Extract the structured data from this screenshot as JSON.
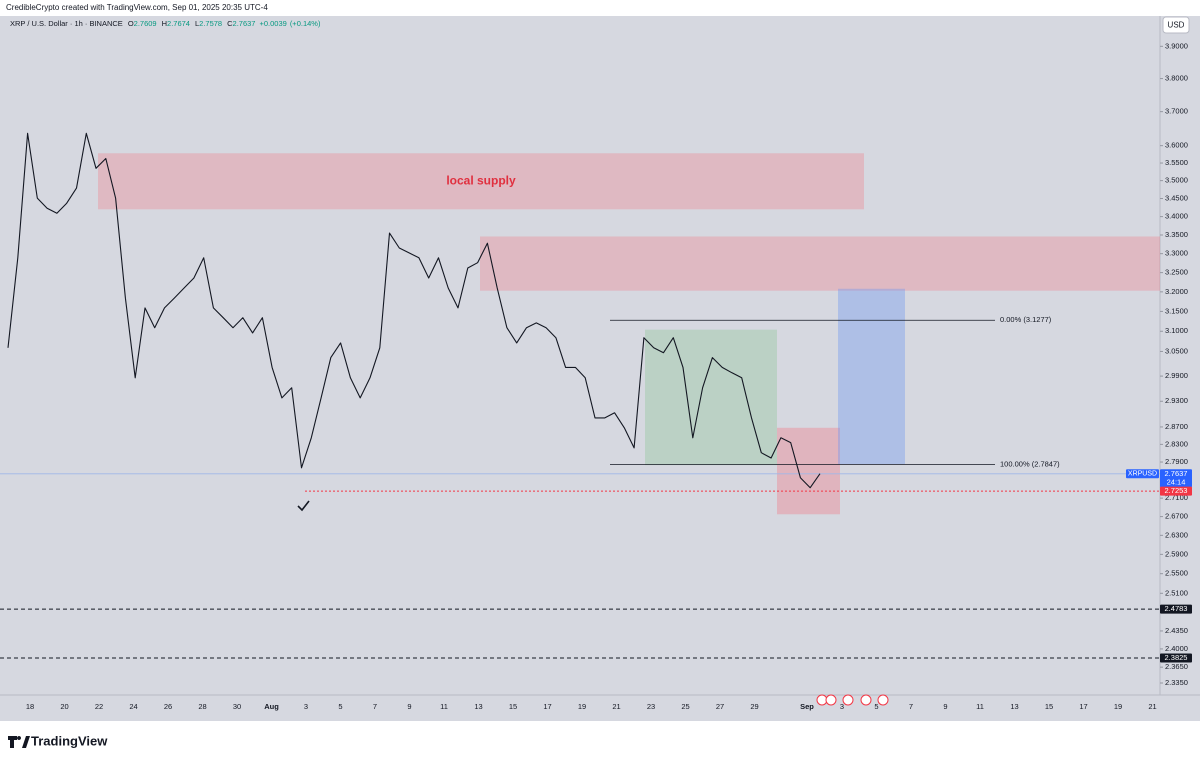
{
  "header": {
    "credit": "CredibleCrypto created with TradingView.com, Sep 01, 2025 20:35 UTC-4"
  },
  "chart_data": {
    "type": "line",
    "title": "XRP / U.S. Dollar · 1h · BINANCE",
    "ohlc": [
      {
        "label": "O",
        "value": 2.7609
      },
      {
        "label": "H",
        "value": 2.7674
      },
      {
        "label": "L",
        "value": 2.7578
      },
      {
        "label": "C",
        "value": 2.7637
      }
    ],
    "change": {
      "value": 0.0039,
      "label": "+0.0039"
    },
    "change_pct": {
      "value": 0.14,
      "label": "(+0.14%)"
    },
    "currency": "USD",
    "symbol": "XRPUSD",
    "countdown": "24:14",
    "log_scale": true,
    "ylim": [
      2.32,
      3.99
    ],
    "yticks": [
      {
        "value": 3.9,
        "label": "3.9000"
      },
      {
        "value": 3.8,
        "label": "3.8000"
      },
      {
        "value": 3.7,
        "label": "3.7000"
      },
      {
        "value": 3.6,
        "label": "3.6000"
      },
      {
        "value": 3.55,
        "label": "3.5500"
      },
      {
        "value": 3.5,
        "label": "3.5000"
      },
      {
        "value": 3.45,
        "label": "3.4500"
      },
      {
        "value": 3.4,
        "label": "3.4000"
      },
      {
        "value": 3.35,
        "label": "3.3500"
      },
      {
        "value": 3.3,
        "label": "3.3000"
      },
      {
        "value": 3.25,
        "label": "3.2500"
      },
      {
        "value": 3.2,
        "label": "3.2000"
      },
      {
        "value": 3.15,
        "label": "3.1500"
      },
      {
        "value": 3.1,
        "label": "3.1000"
      },
      {
        "value": 3.05,
        "label": "3.0500"
      },
      {
        "value": 2.99,
        "label": "2.9900"
      },
      {
        "value": 2.93,
        "label": "2.9300"
      },
      {
        "value": 2.87,
        "label": "2.8700"
      },
      {
        "value": 2.83,
        "label": "2.8300"
      },
      {
        "value": 2.79,
        "label": "2.7900"
      },
      {
        "value": 2.71,
        "label": "2.7100"
      },
      {
        "value": 2.67,
        "label": "2.6700"
      },
      {
        "value": 2.63,
        "label": "2.6300"
      },
      {
        "value": 2.59,
        "label": "2.5900"
      },
      {
        "value": 2.55,
        "label": "2.5500"
      },
      {
        "value": 2.51,
        "label": "2.5100"
      },
      {
        "value": 2.435,
        "label": "2.4350"
      },
      {
        "value": 2.4,
        "label": "2.4000"
      },
      {
        "value": 2.365,
        "label": "2.3650"
      },
      {
        "value": 2.335,
        "label": "2.3350"
      }
    ],
    "xticks": [
      "18",
      "20",
      "22",
      "24",
      "26",
      "28",
      "30",
      "Aug",
      "3",
      "5",
      "7",
      "9",
      "11",
      "13",
      "15",
      "17",
      "19",
      "21",
      "23",
      "25",
      "27",
      "29",
      "Sep",
      "3",
      "5",
      "7",
      "9",
      "11",
      "13",
      "15",
      "17",
      "19",
      "21"
    ],
    "series": [
      {
        "name": "XRPUSD",
        "color": "#131722",
        "values": [
          3.059,
          3.289,
          3.636,
          3.451,
          3.423,
          3.409,
          3.437,
          3.479,
          3.636,
          3.535,
          3.563,
          3.451,
          3.184,
          2.986,
          3.159,
          3.109,
          3.159,
          3.184,
          3.21,
          3.236,
          3.289,
          3.159,
          3.134,
          3.109,
          3.134,
          3.096,
          3.134,
          3.011,
          2.938,
          2.962,
          2.777,
          2.845,
          2.938,
          3.035,
          3.071,
          2.986,
          2.938,
          2.986,
          3.059,
          3.355,
          3.315,
          3.302,
          3.289,
          3.236,
          3.289,
          3.21,
          3.159,
          3.262,
          3.276,
          3.328,
          3.21,
          3.109,
          3.071,
          3.109,
          3.121,
          3.109,
          3.084,
          3.011,
          3.011,
          2.986,
          2.891,
          2.891,
          2.903,
          2.868,
          2.822,
          3.084,
          3.059,
          3.047,
          3.084,
          3.011,
          2.845,
          2.962,
          3.035,
          3.011,
          2.998,
          2.986,
          2.891,
          2.811,
          2.799,
          2.845,
          2.834,
          2.755,
          2.733,
          2.764
        ]
      }
    ],
    "price_labels": [
      {
        "value": 2.7637,
        "label": "2.7637",
        "color": "#2962ff",
        "line": "solid"
      },
      {
        "value": 2.7253,
        "label": "2.7253",
        "color": "#f23645",
        "line": "dotted"
      },
      {
        "value": 2.4783,
        "label": "2.4783",
        "color": "#131722",
        "line": "dashed"
      },
      {
        "value": 2.3825,
        "label": "2.3825",
        "color": "#131722",
        "line": "dashed"
      }
    ],
    "zones": [
      {
        "top": 3.578,
        "bottom": 3.42,
        "color": "rgba(242,120,134,0.33)",
        "label": "local supply"
      },
      {
        "top": 3.346,
        "bottom": 3.203,
        "color": "rgba(242,120,134,0.33)"
      },
      {
        "top": 3.104,
        "bottom": 2.783,
        "color": "rgba(120,190,130,0.28)"
      },
      {
        "top": 2.868,
        "bottom": 2.675,
        "color": "rgba(242,120,134,0.38)"
      },
      {
        "top": 3.208,
        "bottom": 2.785,
        "color": "rgba(110,150,240,0.38)"
      }
    ],
    "fib": [
      {
        "value": 3.1277,
        "label": "0.00% (3.1277)"
      },
      {
        "value": 2.7847,
        "label": "100.00% (2.7847)"
      }
    ]
  },
  "brand": "TradingView"
}
